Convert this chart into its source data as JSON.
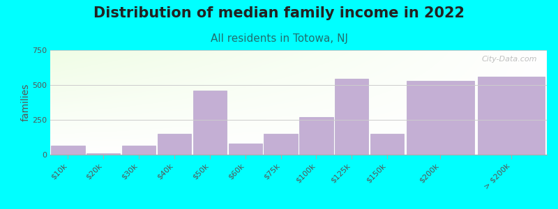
{
  "title": "Distribution of median family income in 2022",
  "subtitle": "All residents in Totowa, NJ",
  "ylabel": "families",
  "background_color": "#00ffff",
  "bar_color": "#c4afd4",
  "bar_edge_color": "#b8a8cc",
  "categories": [
    "$10k",
    "$20k",
    "$30k",
    "$40k",
    "$50k",
    "$60k",
    "$75k",
    "$100k",
    "$125k",
    "$150k",
    "$200k",
    "> $200k"
  ],
  "values": [
    65,
    10,
    65,
    150,
    460,
    80,
    150,
    270,
    545,
    150,
    530,
    560
  ],
  "bar_widths": [
    1,
    1,
    1,
    1,
    1,
    1,
    1,
    1,
    1,
    1,
    2,
    2
  ],
  "bar_positions": [
    0.5,
    1.5,
    2.5,
    3.5,
    4.5,
    5.5,
    6.5,
    7.5,
    8.5,
    9.5,
    11,
    13
  ],
  "ylim": [
    0,
    750
  ],
  "yticks": [
    0,
    250,
    500,
    750
  ],
  "watermark": "City-Data.com",
  "title_fontsize": 15,
  "subtitle_fontsize": 11,
  "ylabel_fontsize": 10,
  "tick_fontsize": 8,
  "subtitle_color": "#207070",
  "title_color": "#222222",
  "tick_color": "#555555",
  "ylabel_color": "#555555",
  "grid_color": "#cccccc",
  "spine_color": "#aaaaaa",
  "watermark_color": "#aaaaaa"
}
